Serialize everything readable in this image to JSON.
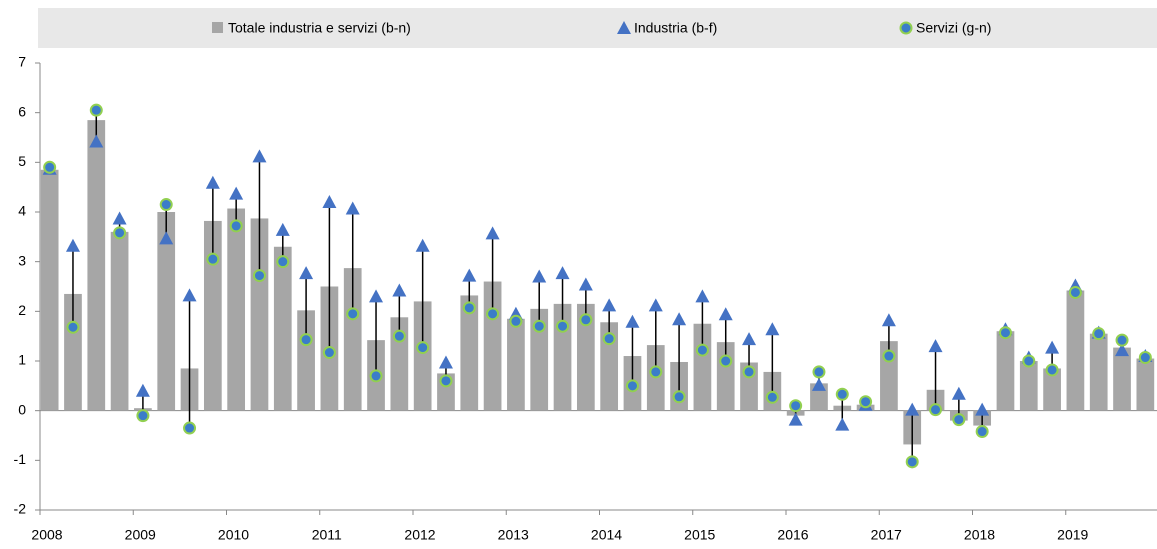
{
  "chart_data": {
    "type": "bar_range",
    "categories": [
      "2008",
      null,
      null,
      null,
      "2009",
      null,
      null,
      null,
      "2010",
      null,
      null,
      null,
      "2011",
      null,
      null,
      null,
      "2012",
      null,
      null,
      null,
      "2013",
      null,
      null,
      null,
      "2014",
      null,
      null,
      null,
      "2015",
      null,
      null,
      null,
      "2016",
      null,
      null,
      null,
      "2017",
      null,
      null,
      null,
      "2018",
      null,
      null,
      null,
      "2019",
      null,
      null,
      null
    ],
    "series": [
      {
        "name": "Totale industria e servizi (b-n)",
        "color": "#a6a6a6",
        "values": [
          4.85,
          2.35,
          5.85,
          3.6,
          0.05,
          4.0,
          0.85,
          3.82,
          4.07,
          3.87,
          3.3,
          2.02,
          2.5,
          2.87,
          1.42,
          1.88,
          2.2,
          0.75,
          2.32,
          2.6,
          1.85,
          2.05,
          2.15,
          2.15,
          1.78,
          1.1,
          1.32,
          0.98,
          1.75,
          1.38,
          0.97,
          0.78,
          -0.1,
          0.55,
          0.1,
          0.12,
          1.4,
          -0.68,
          0.42,
          -0.2,
          -0.3,
          1.6,
          1.0,
          0.85,
          2.42,
          1.55,
          1.27,
          1.05
        ]
      },
      {
        "name": "Industria (b-f)",
        "color": "#4472c4",
        "values": [
          4.85,
          3.3,
          5.4,
          3.85,
          0.38,
          3.45,
          2.3,
          4.57,
          4.35,
          5.1,
          3.62,
          2.75,
          4.18,
          4.05,
          2.28,
          2.4,
          3.3,
          0.95,
          2.7,
          3.55,
          1.93,
          2.68,
          2.75,
          2.52,
          2.1,
          1.77,
          2.1,
          1.82,
          2.28,
          1.92,
          1.42,
          1.62,
          -0.2,
          0.5,
          -0.3,
          0.1,
          1.8,
          0.0,
          1.28,
          0.32,
          0.0,
          1.62,
          1.05,
          1.25,
          2.5,
          1.55,
          1.2,
          1.08
        ]
      },
      {
        "name": "Servizi (g-n)",
        "color": "#3b7dc9",
        "values": [
          4.9,
          1.68,
          6.05,
          3.58,
          -0.1,
          4.15,
          -0.35,
          3.05,
          3.72,
          2.72,
          3.0,
          1.43,
          1.17,
          1.95,
          0.7,
          1.5,
          1.27,
          0.6,
          2.07,
          1.95,
          1.8,
          1.7,
          1.7,
          1.83,
          1.45,
          0.5,
          0.78,
          0.28,
          1.22,
          1.0,
          0.78,
          0.27,
          0.1,
          0.78,
          0.33,
          0.18,
          1.1,
          -1.03,
          0.02,
          -0.18,
          -0.42,
          1.57,
          1.0,
          0.82,
          2.38,
          1.55,
          1.42,
          1.07
        ]
      }
    ],
    "ylim": [
      -2,
      7
    ],
    "yticks": [
      -2,
      -1,
      0,
      1,
      2,
      3,
      4,
      5,
      6,
      7
    ],
    "grid": false,
    "legend": "top"
  }
}
